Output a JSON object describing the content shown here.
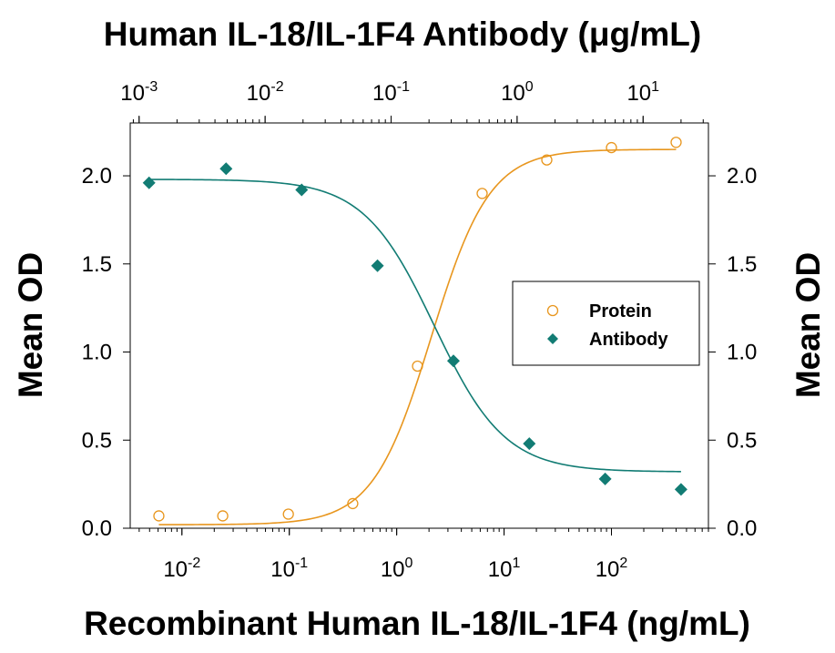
{
  "chart_data": {
    "type": "scatter",
    "title": "Human IL-18/IL-1F4 Antibody (μg/mL)",
    "xlabel": "Recombinant Human IL-18/IL-1F4 (ng/mL)",
    "ylabel": "Mean OD",
    "y2label": "Mean OD",
    "xscale": "log",
    "x2scale": "log",
    "xlim": [
      0.0033,
      800
    ],
    "x2lim": [
      0.00085,
      33
    ],
    "ylim": [
      0,
      2.3
    ],
    "y2lim": [
      0,
      2.3
    ],
    "xticks": [
      {
        "value": 0.01,
        "label": "10-2"
      },
      {
        "value": 0.1,
        "label": "10-1"
      },
      {
        "value": 1,
        "label": "100"
      },
      {
        "value": 10,
        "label": "101"
      },
      {
        "value": 100,
        "label": "102"
      }
    ],
    "x2ticks": [
      {
        "value": 0.001,
        "label": "10-3"
      },
      {
        "value": 0.01,
        "label": "10-2"
      },
      {
        "value": 0.1,
        "label": "10-1"
      },
      {
        "value": 1,
        "label": "100"
      },
      {
        "value": 10,
        "label": "101"
      }
    ],
    "yticks": [
      {
        "value": 0,
        "label": "0.0"
      },
      0.5,
      {
        "value": 1,
        "label": "1.0"
      },
      1.5,
      {
        "value": 2,
        "label": "2.0"
      }
    ],
    "y2ticks": [
      {
        "value": 0,
        "label": "0.0"
      },
      0.5,
      {
        "value": 1,
        "label": "1.0"
      },
      1.5,
      {
        "value": 2,
        "label": "2.0"
      }
    ],
    "legend": "center right",
    "series": [
      {
        "name": "Protein",
        "color": "#e8961e",
        "marker": "open-circle",
        "xaxis": "x",
        "x": [
          0.0061,
          0.024,
          0.098,
          0.39,
          1.5625,
          6.25,
          25,
          100,
          400
        ],
        "values": [
          0.07,
          0.07,
          0.08,
          0.14,
          0.92,
          1.9,
          2.09,
          2.16,
          2.19
        ],
        "fit": {
          "bottom": 0.02,
          "top": 2.15,
          "ec50": 2.1,
          "hill": 1.6
        }
      },
      {
        "name": "Antibody",
        "color": "#127c74",
        "marker": "diamond",
        "xaxis": "x2",
        "x": [
          0.0012,
          0.0049,
          0.0195,
          0.078,
          0.3125,
          1.25,
          5,
          20
        ],
        "values": [
          1.96,
          2.04,
          1.92,
          1.49,
          0.95,
          0.48,
          0.28,
          0.22
        ],
        "fit": {
          "bottom": 0.32,
          "top": 1.98,
          "ec50": 0.22,
          "hill": -1.55
        }
      }
    ]
  }
}
